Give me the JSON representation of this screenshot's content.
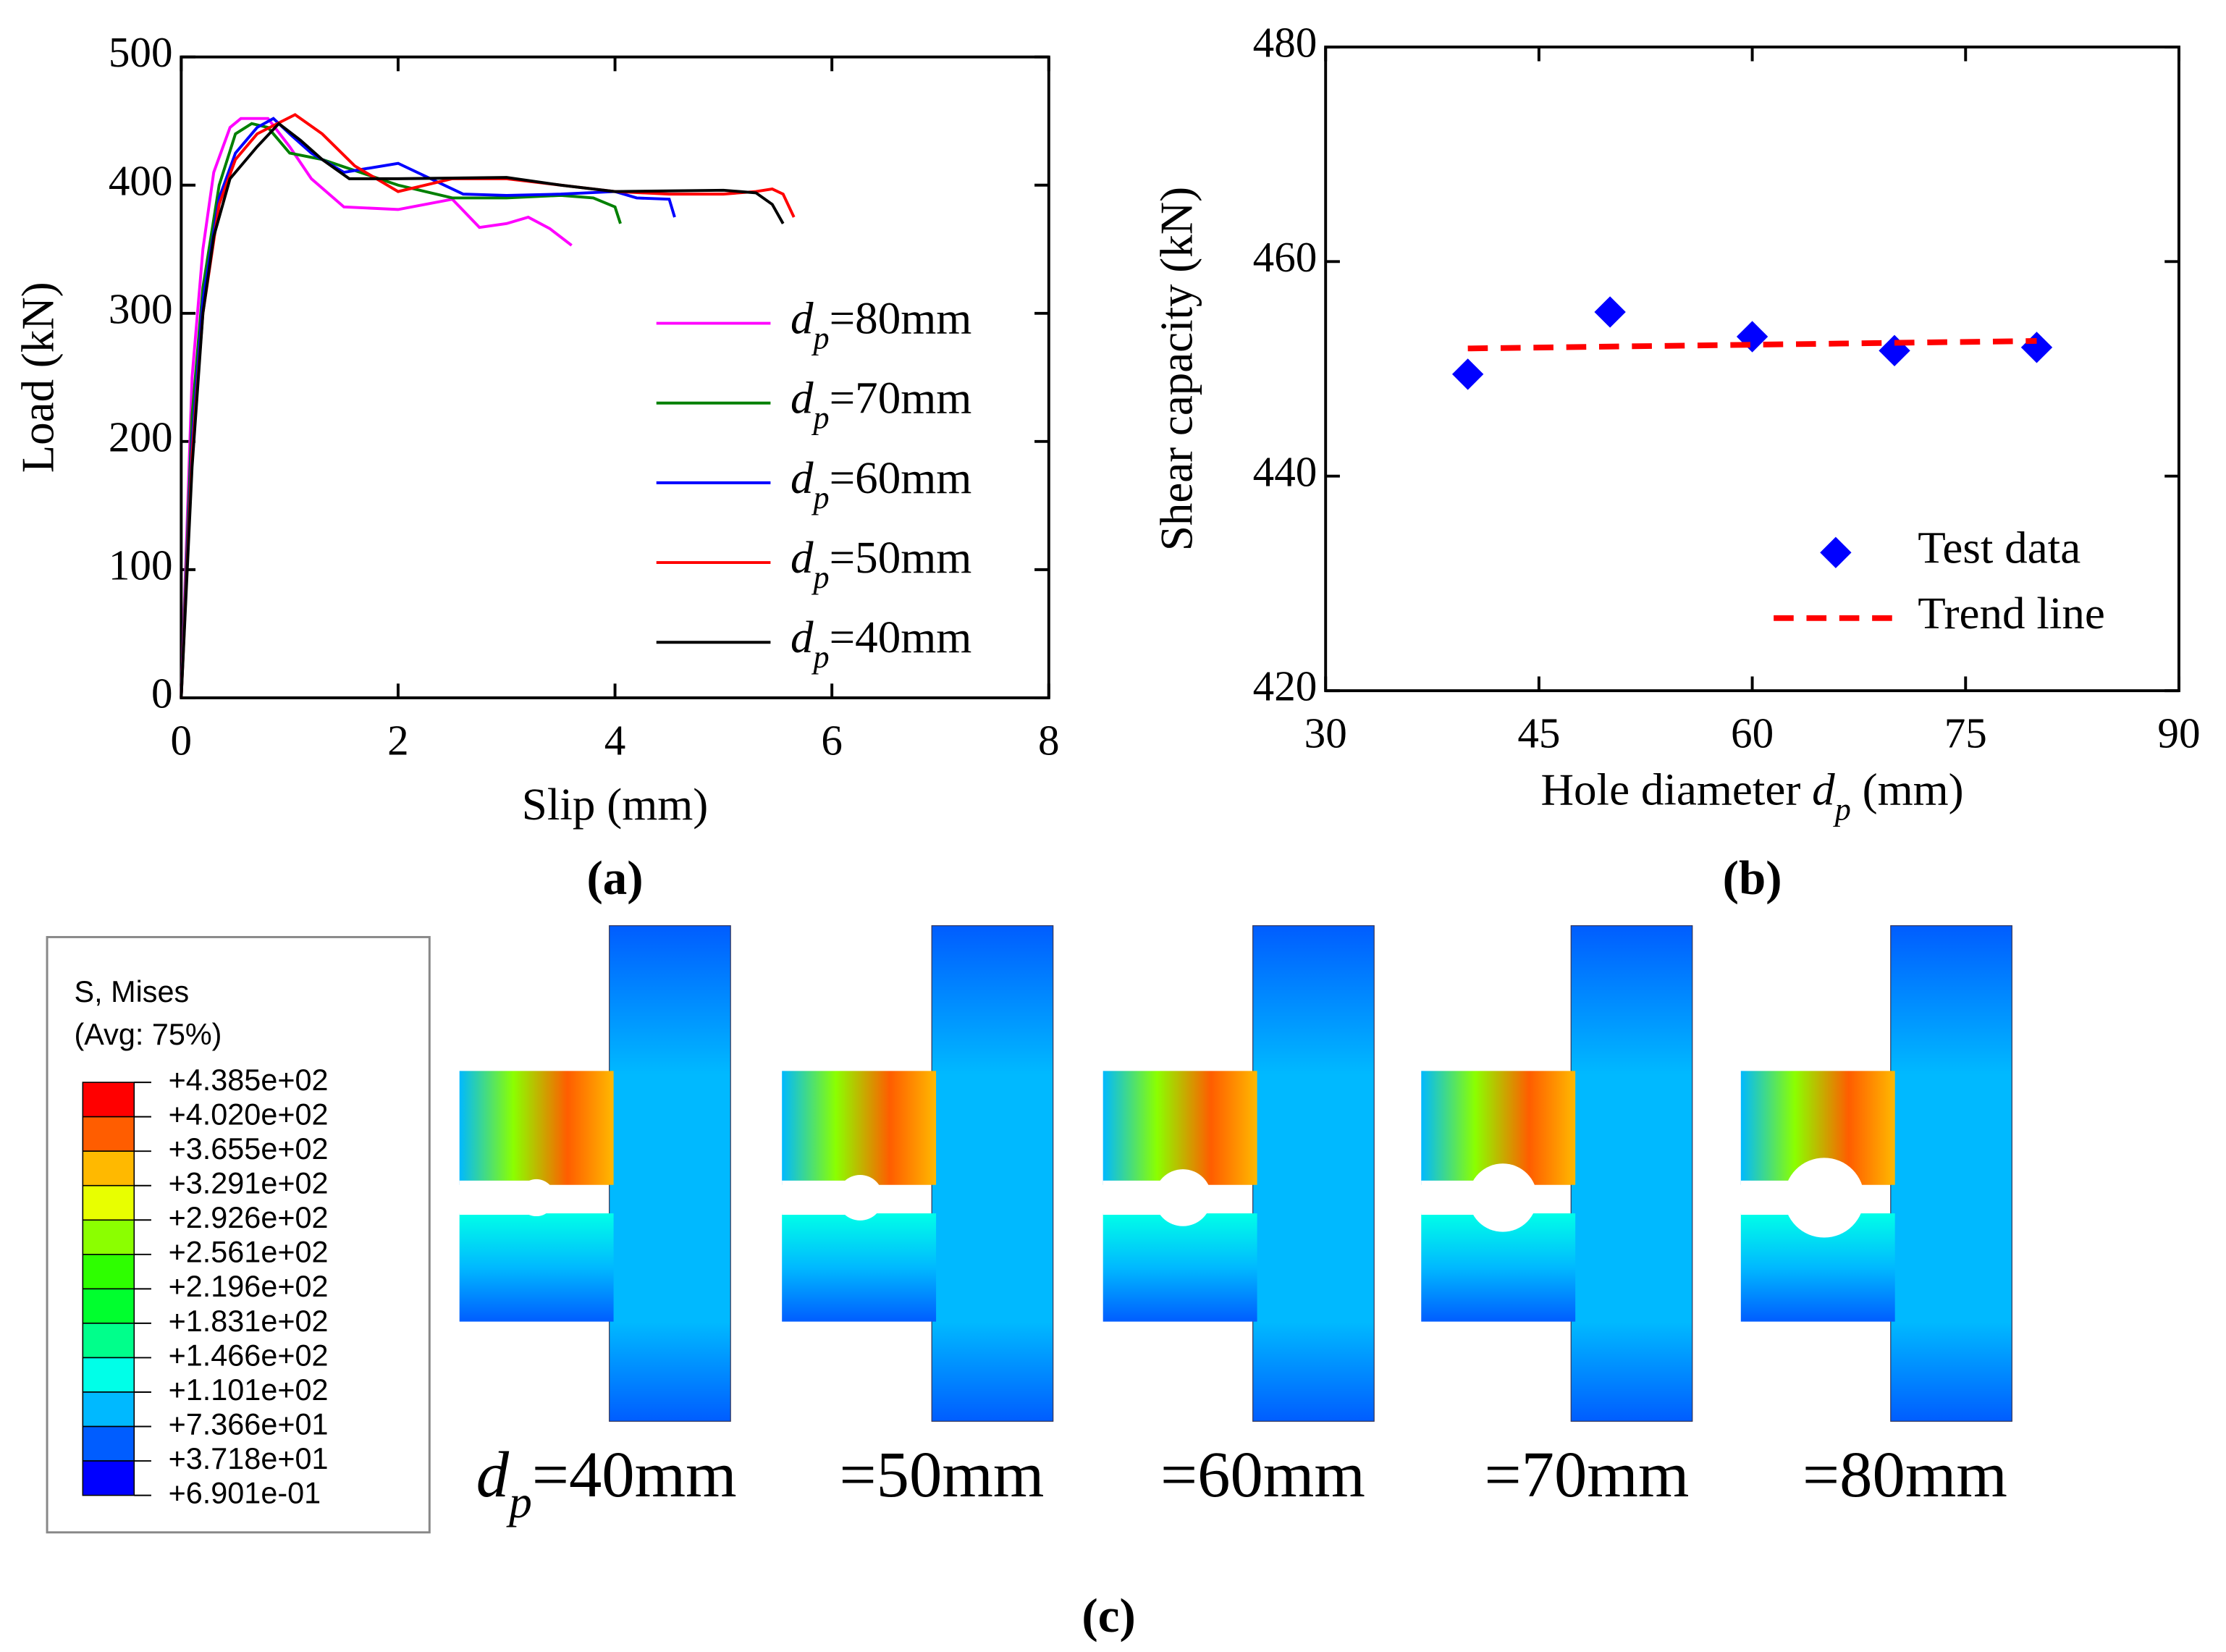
{
  "chart_data": [
    {
      "type": "line",
      "xlabel": "Slip (mm)",
      "ylabel": "Load (kN)",
      "panel": "(a)",
      "xlim": [
        0,
        8
      ],
      "ylim": [
        0,
        500
      ],
      "xticks": [
        0,
        2,
        4,
        6,
        8
      ],
      "yticks": [
        0,
        100,
        200,
        300,
        400,
        500
      ],
      "legend": "center right",
      "series": [
        {
          "name": "dp=80mm",
          "color": "#ff00ff",
          "x": [
            0,
            0.1,
            0.2,
            0.3,
            0.45,
            0.55,
            0.8,
            1.0,
            1.2,
            1.5,
            2.0,
            2.5,
            2.75,
            3.0,
            3.2,
            3.4,
            3.6
          ],
          "values": [
            0,
            250,
            350,
            410,
            445,
            452,
            452,
            430,
            405,
            383,
            381,
            389,
            367,
            370,
            375,
            366,
            353
          ]
        },
        {
          "name": "dp=70mm",
          "color": "#008000",
          "x": [
            0,
            0.1,
            0.2,
            0.35,
            0.5,
            0.65,
            0.8,
            1.0,
            1.3,
            2.0,
            2.5,
            3.0,
            3.5,
            3.8,
            4.0,
            4.05
          ],
          "values": [
            0,
            220,
            320,
            400,
            440,
            448,
            445,
            425,
            420,
            400,
            390,
            390,
            392,
            390,
            383,
            370
          ]
        },
        {
          "name": "dp=60mm",
          "color": "#0000ff",
          "x": [
            0,
            0.1,
            0.2,
            0.35,
            0.5,
            0.7,
            0.85,
            1.0,
            1.2,
            1.5,
            2.0,
            2.3,
            2.6,
            3.0,
            3.5,
            4.0,
            4.2,
            4.5,
            4.55
          ],
          "values": [
            0,
            200,
            310,
            390,
            425,
            445,
            452,
            440,
            425,
            410,
            417,
            405,
            393,
            392,
            393,
            395,
            390,
            389,
            375
          ]
        },
        {
          "name": "dp=50mm",
          "color": "#ff0000",
          "x": [
            0,
            0.1,
            0.2,
            0.35,
            0.5,
            0.7,
            1.05,
            1.3,
            1.6,
            2.0,
            2.5,
            3.0,
            3.5,
            4.0,
            4.5,
            5.0,
            5.3,
            5.45,
            5.55,
            5.65
          ],
          "values": [
            0,
            190,
            300,
            385,
            420,
            440,
            455,
            440,
            415,
            395,
            405,
            405,
            400,
            395,
            393,
            393,
            395,
            397,
            393,
            375
          ]
        },
        {
          "name": "dp=40mm",
          "color": "#000000",
          "x": [
            0,
            0.1,
            0.2,
            0.3,
            0.45,
            0.7,
            0.9,
            1.1,
            1.3,
            1.55,
            2.0,
            3.0,
            3.5,
            4.0,
            5.0,
            5.3,
            5.45,
            5.55
          ],
          "values": [
            0,
            180,
            300,
            360,
            405,
            430,
            448,
            435,
            420,
            405,
            405,
            406,
            400,
            395,
            396,
            394,
            385,
            370
          ]
        }
      ]
    },
    {
      "type": "scatter",
      "xlabel": "Hole diameter dp (mm)",
      "ylabel": "Shear capacity (kN)",
      "panel": "(b)",
      "xlim": [
        30,
        90
      ],
      "ylim": [
        420,
        480
      ],
      "xticks": [
        30,
        45,
        60,
        75,
        90
      ],
      "yticks": [
        420,
        440,
        460,
        480
      ],
      "legend": "lower right",
      "series": [
        {
          "name": "Test data",
          "color": "#0000ff",
          "marker": "diamond",
          "x": [
            40,
            50,
            60,
            70,
            80
          ],
          "values": [
            449.5,
            455.3,
            453,
            451.7,
            452
          ]
        },
        {
          "name": "Trend line",
          "color": "#ff0000",
          "linestyle": "dashed",
          "x": [
            40,
            80
          ],
          "values": [
            451.9,
            452.6
          ]
        }
      ]
    }
  ],
  "panel_c": {
    "panel": "(c)",
    "legend_title": "S, Mises",
    "legend_subtitle": "(Avg: 75%)",
    "scale_labels": [
      "+4.385e+02",
      "+4.020e+02",
      "+3.655e+02",
      "+3.291e+02",
      "+2.926e+02",
      "+2.561e+02",
      "+2.196e+02",
      "+1.831e+02",
      "+1.466e+02",
      "+1.101e+02",
      "+7.366e+01",
      "+3.718e+01",
      "+6.901e-01"
    ],
    "scale_colors": [
      "#ff0000",
      "#ff5d00",
      "#ffb900",
      "#e8ff00",
      "#8bff00",
      "#2eff00",
      "#00ff2e",
      "#00ff8b",
      "#00ffe8",
      "#00b9ff",
      "#005dff",
      "#0000ff"
    ],
    "captions": [
      "dp=40mm",
      "=50mm",
      "=60mm",
      "=70mm",
      "=80mm"
    ]
  }
}
